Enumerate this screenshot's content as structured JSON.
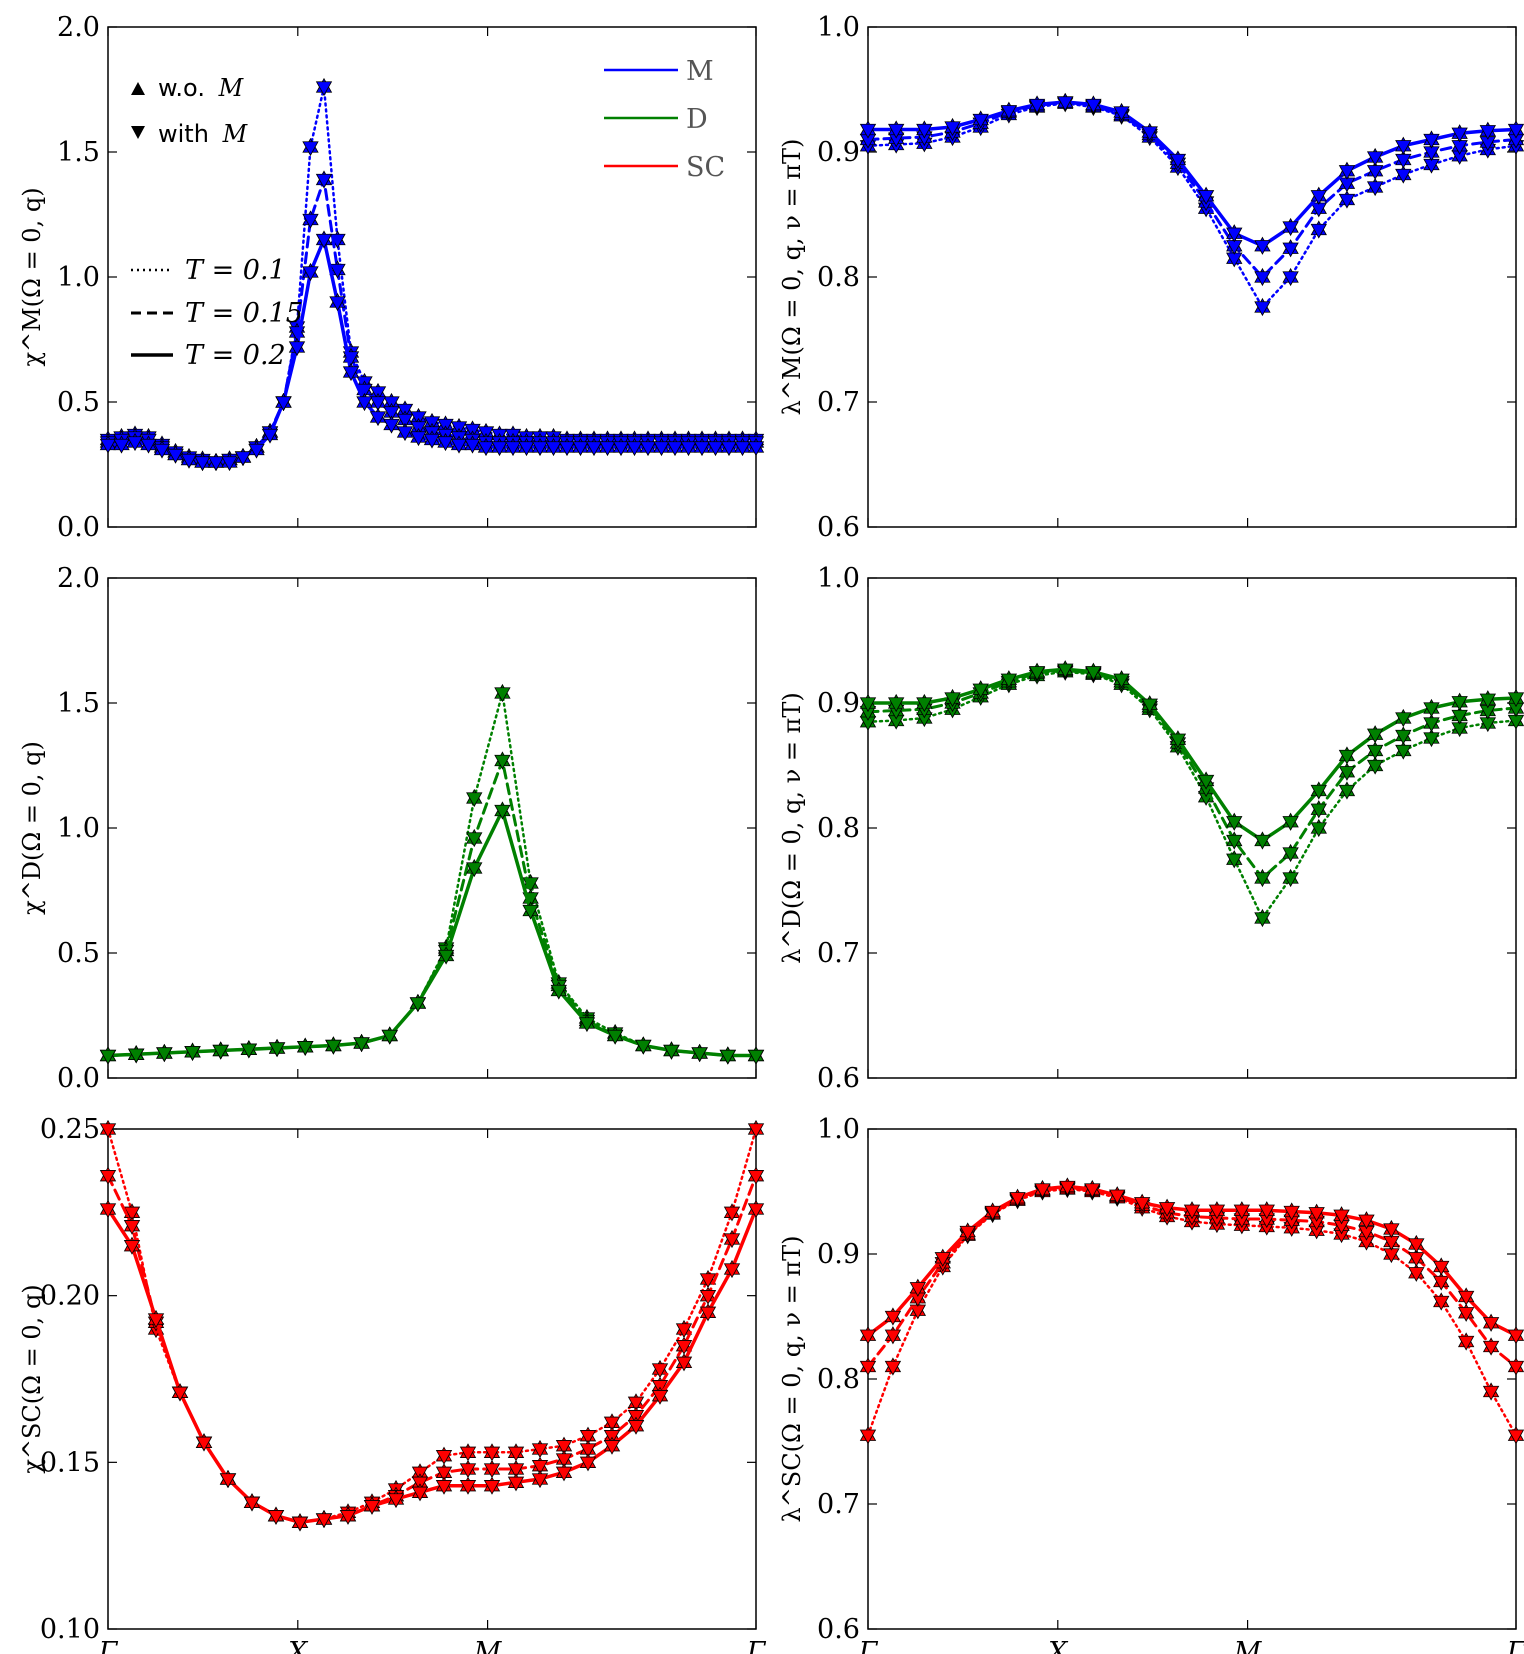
{
  "colors": {
    "M": "#0000ff",
    "D": "#008000",
    "SC": "#ff0000",
    "axis": "#000000"
  },
  "legend": {
    "markers": [
      {
        "symbol": "triangle-up-icon",
        "text": "w.o.",
        "italic": "M"
      },
      {
        "symbol": "triangle-down-icon",
        "text": "with",
        "italic": "M"
      }
    ],
    "linestyles": [
      {
        "style": "dotted",
        "text": "T = 0.1"
      },
      {
        "style": "dashed",
        "text": "T = 0.15"
      },
      {
        "style": "solid",
        "text": "T = 0.2"
      }
    ],
    "channels": [
      {
        "key": "M",
        "text": "M"
      },
      {
        "key": "D",
        "text": "D"
      },
      {
        "key": "SC",
        "text": "SC"
      }
    ]
  },
  "chart_data": [
    {
      "type": "line",
      "id": "chiM",
      "channel": "M",
      "ylabel": "χ^M(Ω = 0, q)",
      "ylim": [
        0,
        2.0
      ],
      "yticks": [
        "0.0",
        "0.5",
        "1.0",
        "1.5",
        "2.0"
      ],
      "ytick_values": [
        0,
        0.5,
        1.0,
        1.5,
        2.0
      ],
      "xtick_labels": [],
      "x": [
        0,
        0.0714,
        0.1429,
        0.2143,
        0.2857,
        0.3571,
        0.4286,
        0.5,
        0.5714,
        0.6429,
        0.7143,
        0.7857,
        0.8571,
        0.9286,
        1.0,
        1.0714,
        1.1429,
        1.2143,
        1.2857,
        1.3571,
        1.4286,
        1.5,
        1.5714,
        1.6429,
        1.7143,
        1.7857,
        1.8571,
        1.9286,
        2.0,
        2.0714,
        2.1429,
        2.2143,
        2.2857,
        2.3571,
        2.4286,
        2.5,
        2.5714,
        2.6429,
        2.7143,
        2.7857,
        2.8571,
        2.9286,
        3.0,
        3.0714,
        3.1429,
        3.2143,
        3.2857,
        3.3571,
        3.4286
      ],
      "series": [
        {
          "name": "T = 0.1",
          "style": "dotted",
          "values": [
            0.35,
            0.36,
            0.37,
            0.36,
            0.33,
            0.3,
            0.28,
            0.27,
            0.26,
            0.27,
            0.28,
            0.32,
            0.38,
            0.5,
            0.8,
            1.52,
            1.76,
            1.15,
            0.7,
            0.58,
            0.54,
            0.5,
            0.47,
            0.44,
            0.42,
            0.41,
            0.4,
            0.39,
            0.38,
            0.37,
            0.37,
            0.36,
            0.36,
            0.36,
            0.35,
            0.35,
            0.35,
            0.35,
            0.35,
            0.35,
            0.35,
            0.35,
            0.35,
            0.35,
            0.35,
            0.35,
            0.35,
            0.35,
            0.35
          ]
        },
        {
          "name": "T = 0.15",
          "style": "dashed",
          "values": [
            0.34,
            0.35,
            0.36,
            0.35,
            0.32,
            0.29,
            0.27,
            0.26,
            0.26,
            0.27,
            0.28,
            0.32,
            0.38,
            0.5,
            0.78,
            1.23,
            1.39,
            1.03,
            0.68,
            0.55,
            0.5,
            0.46,
            0.43,
            0.4,
            0.38,
            0.37,
            0.36,
            0.35,
            0.34,
            0.34,
            0.34,
            0.34,
            0.34,
            0.34,
            0.34,
            0.34,
            0.34,
            0.34,
            0.34,
            0.34,
            0.34,
            0.34,
            0.34,
            0.34,
            0.34,
            0.34,
            0.34,
            0.34,
            0.34
          ]
        },
        {
          "name": "T = 0.2",
          "style": "solid",
          "values": [
            0.33,
            0.33,
            0.34,
            0.33,
            0.31,
            0.29,
            0.27,
            0.26,
            0.26,
            0.26,
            0.28,
            0.31,
            0.37,
            0.5,
            0.72,
            1.02,
            1.15,
            0.9,
            0.62,
            0.5,
            0.44,
            0.41,
            0.38,
            0.36,
            0.35,
            0.34,
            0.33,
            0.33,
            0.32,
            0.32,
            0.32,
            0.32,
            0.32,
            0.32,
            0.32,
            0.32,
            0.32,
            0.32,
            0.32,
            0.32,
            0.32,
            0.32,
            0.32,
            0.32,
            0.32,
            0.32,
            0.32,
            0.32,
            0.32
          ]
        }
      ]
    },
    {
      "type": "line",
      "id": "lamM",
      "channel": "M",
      "ylabel": "λ^M(Ω = 0, q, ν = πT)",
      "ylim": [
        0.6,
        1.0
      ],
      "yticks": [
        "0.6",
        "0.7",
        "0.8",
        "0.9",
        "1.0"
      ],
      "ytick_values": [
        0.6,
        0.7,
        0.8,
        0.9,
        1.0
      ],
      "xtick_labels": [],
      "series": [
        {
          "name": "T = 0.1",
          "style": "dotted",
          "values": [
            0.905,
            0.906,
            0.907,
            0.912,
            0.92,
            0.93,
            0.936,
            0.939,
            0.936,
            0.929,
            0.912,
            0.888,
            0.855,
            0.815,
            0.776,
            0.8,
            0.838,
            0.862,
            0.872,
            0.882,
            0.89,
            0.897,
            0.902,
            0.905
          ]
        },
        {
          "name": "T = 0.15",
          "style": "dashed",
          "values": [
            0.91,
            0.911,
            0.912,
            0.916,
            0.923,
            0.932,
            0.937,
            0.94,
            0.937,
            0.93,
            0.914,
            0.891,
            0.86,
            0.825,
            0.8,
            0.823,
            0.855,
            0.875,
            0.885,
            0.894,
            0.9,
            0.905,
            0.908,
            0.91
          ]
        },
        {
          "name": "T = 0.2",
          "style": "solid",
          "values": [
            0.918,
            0.918,
            0.918,
            0.92,
            0.926,
            0.933,
            0.938,
            0.94,
            0.938,
            0.932,
            0.916,
            0.894,
            0.865,
            0.835,
            0.825,
            0.84,
            0.865,
            0.885,
            0.896,
            0.905,
            0.91,
            0.915,
            0.917,
            0.918
          ]
        }
      ]
    },
    {
      "type": "line",
      "id": "chiD",
      "channel": "D",
      "ylabel": "χ^D(Ω = 0, q)",
      "ylim": [
        0,
        2.0
      ],
      "yticks": [
        "0.0",
        "0.5",
        "1.0",
        "1.5",
        "2.0"
      ],
      "ytick_values": [
        0,
        0.5,
        1.0,
        1.5,
        2.0
      ],
      "xtick_labels": [],
      "series": [
        {
          "name": "T = 0.1",
          "style": "dotted",
          "values": [
            0.09,
            0.095,
            0.1,
            0.105,
            0.11,
            0.115,
            0.12,
            0.125,
            0.13,
            0.14,
            0.17,
            0.3,
            0.52,
            1.12,
            1.54,
            0.78,
            0.38,
            0.24,
            0.18,
            0.13,
            0.11,
            0.1,
            0.09,
            0.09
          ]
        },
        {
          "name": "T = 0.15",
          "style": "dashed",
          "values": [
            0.09,
            0.095,
            0.1,
            0.105,
            0.11,
            0.115,
            0.12,
            0.125,
            0.13,
            0.14,
            0.17,
            0.3,
            0.51,
            0.96,
            1.27,
            0.72,
            0.37,
            0.23,
            0.17,
            0.13,
            0.11,
            0.1,
            0.09,
            0.09
          ]
        },
        {
          "name": "T = 0.2",
          "style": "solid",
          "values": [
            0.09,
            0.095,
            0.1,
            0.105,
            0.11,
            0.115,
            0.12,
            0.125,
            0.13,
            0.14,
            0.17,
            0.3,
            0.49,
            0.84,
            1.07,
            0.67,
            0.35,
            0.22,
            0.17,
            0.13,
            0.11,
            0.1,
            0.09,
            0.09
          ]
        }
      ]
    },
    {
      "type": "line",
      "id": "lamD",
      "channel": "D",
      "ylabel": "λ^D(Ω = 0, q, ν = πT)",
      "ylim": [
        0.6,
        1.0
      ],
      "yticks": [
        "0.6",
        "0.7",
        "0.8",
        "0.9",
        "1.0"
      ],
      "ytick_values": [
        0.6,
        0.7,
        0.8,
        0.9,
        1.0
      ],
      "xtick_labels": [],
      "series": [
        {
          "name": "T = 0.1",
          "style": "dotted",
          "values": [
            0.885,
            0.886,
            0.888,
            0.895,
            0.905,
            0.915,
            0.922,
            0.925,
            0.923,
            0.915,
            0.895,
            0.865,
            0.825,
            0.775,
            0.728,
            0.76,
            0.8,
            0.83,
            0.85,
            0.862,
            0.872,
            0.88,
            0.884,
            0.886
          ]
        },
        {
          "name": "T = 0.15",
          "style": "dashed",
          "values": [
            0.893,
            0.894,
            0.895,
            0.9,
            0.908,
            0.917,
            0.924,
            0.926,
            0.924,
            0.917,
            0.897,
            0.868,
            0.832,
            0.79,
            0.76,
            0.78,
            0.815,
            0.845,
            0.862,
            0.874,
            0.884,
            0.89,
            0.894,
            0.896
          ]
        },
        {
          "name": "T = 0.2",
          "style": "solid",
          "values": [
            0.9,
            0.9,
            0.9,
            0.904,
            0.911,
            0.919,
            0.925,
            0.927,
            0.925,
            0.919,
            0.899,
            0.871,
            0.838,
            0.805,
            0.79,
            0.805,
            0.83,
            0.858,
            0.875,
            0.888,
            0.896,
            0.901,
            0.903,
            0.904
          ]
        }
      ]
    },
    {
      "type": "line",
      "id": "chiSC",
      "channel": "SC",
      "ylabel": "χ^SC(Ω = 0, q)",
      "ylim": [
        0.1,
        0.25
      ],
      "yticks": [
        "0.10",
        "0.15",
        "0.20",
        "0.25"
      ],
      "ytick_values": [
        0.1,
        0.15,
        0.2,
        0.25
      ],
      "xtick_labels": [
        "Γ",
        "X",
        "M",
        "Γ"
      ],
      "xtick_positions": [
        0,
        1,
        2,
        3.4142
      ],
      "series": [
        {
          "name": "T = 0.1",
          "style": "dotted",
          "values": [
            0.25,
            0.225,
            0.19,
            0.171,
            0.156,
            0.145,
            0.138,
            0.134,
            0.132,
            0.133,
            0.135,
            0.138,
            0.142,
            0.147,
            0.152,
            0.153,
            0.153,
            0.153,
            0.154,
            0.155,
            0.158,
            0.162,
            0.168,
            0.178,
            0.19,
            0.205,
            0.225,
            0.25
          ]
        },
        {
          "name": "T = 0.15",
          "style": "dashed",
          "values": [
            0.236,
            0.221,
            0.192,
            0.171,
            0.156,
            0.145,
            0.138,
            0.134,
            0.132,
            0.133,
            0.134,
            0.137,
            0.14,
            0.144,
            0.147,
            0.148,
            0.148,
            0.148,
            0.149,
            0.151,
            0.154,
            0.158,
            0.164,
            0.173,
            0.185,
            0.2,
            0.217,
            0.236
          ]
        },
        {
          "name": "T = 0.2",
          "style": "solid",
          "values": [
            0.226,
            0.215,
            0.193,
            0.171,
            0.156,
            0.145,
            0.138,
            0.134,
            0.132,
            0.133,
            0.134,
            0.137,
            0.139,
            0.141,
            0.143,
            0.143,
            0.143,
            0.144,
            0.145,
            0.147,
            0.15,
            0.155,
            0.161,
            0.17,
            0.18,
            0.195,
            0.208,
            0.226
          ]
        }
      ]
    },
    {
      "type": "line",
      "id": "lamSC",
      "channel": "SC",
      "ylabel": "λ^SC(Ω = 0, q, ν = πT)",
      "ylim": [
        0.6,
        1.0
      ],
      "yticks": [
        "0.6",
        "0.7",
        "0.8",
        "0.9",
        "1.0"
      ],
      "ytick_values": [
        0.6,
        0.7,
        0.8,
        0.9,
        1.0
      ],
      "xtick_labels": [
        "Γ",
        "X",
        "M",
        "Γ"
      ],
      "xtick_positions": [
        0,
        1,
        2,
        3.4142
      ],
      "series": [
        {
          "name": "T = 0.1",
          "style": "dotted",
          "values": [
            0.755,
            0.81,
            0.855,
            0.89,
            0.915,
            0.932,
            0.943,
            0.95,
            0.952,
            0.95,
            0.945,
            0.937,
            0.93,
            0.926,
            0.924,
            0.923,
            0.922,
            0.921,
            0.919,
            0.916,
            0.91,
            0.9,
            0.885,
            0.862,
            0.83,
            0.79,
            0.755
          ]
        },
        {
          "name": "T = 0.15",
          "style": "dashed",
          "values": [
            0.81,
            0.835,
            0.865,
            0.893,
            0.916,
            0.933,
            0.944,
            0.951,
            0.953,
            0.951,
            0.946,
            0.939,
            0.933,
            0.93,
            0.929,
            0.928,
            0.928,
            0.927,
            0.926,
            0.923,
            0.918,
            0.91,
            0.897,
            0.878,
            0.853,
            0.826,
            0.81
          ]
        },
        {
          "name": "T = 0.2",
          "style": "solid",
          "values": [
            0.835,
            0.85,
            0.873,
            0.897,
            0.918,
            0.934,
            0.945,
            0.952,
            0.954,
            0.952,
            0.947,
            0.941,
            0.937,
            0.935,
            0.935,
            0.935,
            0.935,
            0.934,
            0.933,
            0.931,
            0.927,
            0.92,
            0.908,
            0.89,
            0.866,
            0.845,
            0.835
          ]
        }
      ]
    }
  ]
}
